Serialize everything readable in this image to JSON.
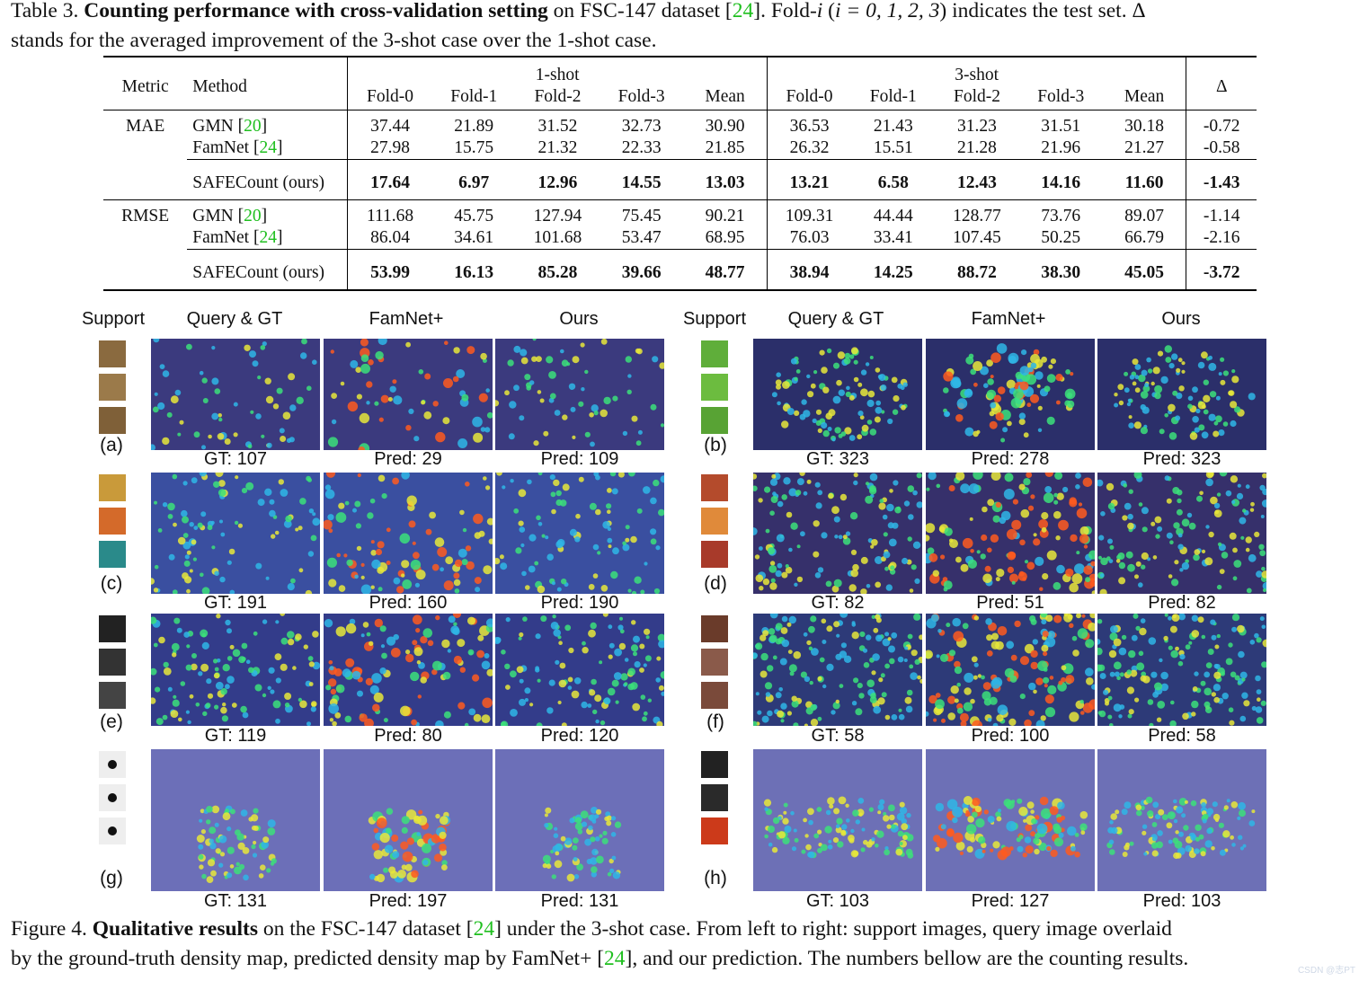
{
  "table_caption": {
    "label": "Table 3.",
    "bold": "Counting performance with cross-validation setting",
    "text1": "on FSC-147 dataset [",
    "ref": "24",
    "text2": "]. Fold-",
    "fold_var": "i",
    "text3": " (",
    "cond": "i = 0, 1, 2, 3",
    "text4": ") indicates the test set. Δ",
    "line2": "stands for the averaged improvement of the 3-shot case over the 1-shot case."
  },
  "table": {
    "head": {
      "metric": "Metric",
      "method": "Method",
      "one_shot": "1-shot",
      "three_shot": "3-shot",
      "delta": "Δ",
      "cols": [
        "Fold-0",
        "Fold-1",
        "Fold-2",
        "Fold-3",
        "Mean"
      ]
    },
    "groups": [
      {
        "metric": "MAE",
        "rows": [
          {
            "method": "GMN [",
            "ref": "20",
            "close": "]",
            "one": [
              "37.44",
              "21.89",
              "31.52",
              "32.73",
              "30.90"
            ],
            "three": [
              "36.53",
              "21.43",
              "31.23",
              "31.51",
              "30.18"
            ],
            "delta": "-0.72"
          },
          {
            "method": "FamNet [",
            "ref": "24",
            "close": "]",
            "one": [
              "27.98",
              "15.75",
              "21.32",
              "22.33",
              "21.85"
            ],
            "three": [
              "26.32",
              "15.51",
              "21.28",
              "21.96",
              "21.27"
            ],
            "delta": "-0.58"
          }
        ],
        "ours": {
          "method": "SAFECount (ours)",
          "one": [
            "17.64",
            "6.97",
            "12.96",
            "14.55",
            "13.03"
          ],
          "three": [
            "13.21",
            "6.58",
            "12.43",
            "14.16",
            "11.60"
          ],
          "delta": "-1.43"
        }
      },
      {
        "metric": "RMSE",
        "rows": [
          {
            "method": "GMN [",
            "ref": "20",
            "close": "]",
            "one": [
              "111.68",
              "45.75",
              "127.94",
              "75.45",
              "90.21"
            ],
            "three": [
              "109.31",
              "44.44",
              "128.77",
              "73.76",
              "89.07"
            ],
            "delta": "-1.14"
          },
          {
            "method": "FamNet [",
            "ref": "24",
            "close": "]",
            "one": [
              "86.04",
              "34.61",
              "101.68",
              "53.47",
              "68.95"
            ],
            "three": [
              "76.03",
              "33.41",
              "107.45",
              "50.25",
              "66.79"
            ],
            "delta": "-2.16"
          }
        ],
        "ours": {
          "method": "SAFECount (ours)",
          "one": [
            "53.99",
            "16.13",
            "85.28",
            "39.66",
            "48.77"
          ],
          "three": [
            "38.94",
            "14.25",
            "88.72",
            "38.30",
            "45.05"
          ],
          "delta": "-3.72"
        }
      }
    ]
  },
  "figure": {
    "col_heads": [
      "Support",
      "Query & GT",
      "FamNet+",
      "Ours"
    ],
    "rows": [
      {
        "left": {
          "label": "(a)",
          "counts": [
            "GT: 107",
            "Pred: 29",
            "Pred: 109"
          ]
        },
        "right": {
          "label": "(b)",
          "counts": [
            "GT: 323",
            "Pred: 278",
            "Pred: 323"
          ]
        }
      },
      {
        "left": {
          "label": "(c)",
          "counts": [
            "GT: 191",
            "Pred: 160",
            "Pred: 190"
          ]
        },
        "right": {
          "label": "(d)",
          "counts": [
            "GT: 82",
            "Pred: 51",
            "Pred: 82"
          ]
        }
      },
      {
        "left": {
          "label": "(e)",
          "counts": [
            "GT: 119",
            "Pred: 80",
            "Pred: 120"
          ]
        },
        "right": {
          "label": "(f)",
          "counts": [
            "GT: 58",
            "Pred: 100",
            "Pred: 58"
          ]
        }
      },
      {
        "left": {
          "label": "(g)",
          "counts": [
            "GT: 131",
            "Pred: 197",
            "Pred: 131"
          ]
        },
        "right": {
          "label": "(h)",
          "counts": [
            "GT: 103",
            "Pred: 127",
            "Pred: 103"
          ]
        }
      }
    ]
  },
  "figure_caption": {
    "label": "Figure 4.",
    "bold": "Qualitative results",
    "text1": "on the FSC-147 dataset [",
    "ref": "24",
    "text2": "] under the 3-shot case. From left to right: support images, query image overlaid",
    "line2a": "by the ground-truth density map, predicted density map by FamNet+ [",
    "ref2": "24",
    "line2b": "], and our prediction. The numbers bellow are the counting results."
  },
  "watermark": "CSDN @志PT",
  "colors": {
    "citation": "#1fbf1f",
    "overlay": "#4a4f9e"
  }
}
